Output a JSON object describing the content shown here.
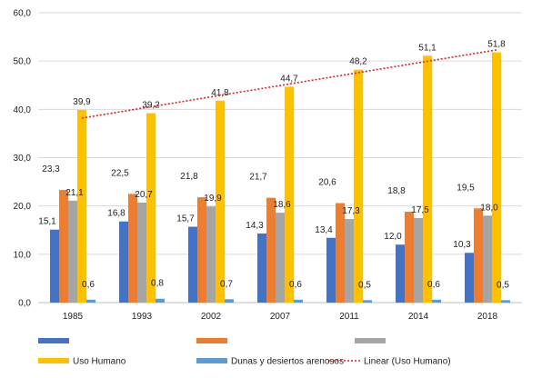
{
  "chart_data": {
    "type": "bar",
    "categories": [
      "1985",
      "1993",
      "2002",
      "2007",
      "2011",
      "2014",
      "2018"
    ],
    "series": [
      {
        "name": "",
        "color": "#4472C4",
        "values": [
          15.1,
          16.8,
          15.7,
          14.3,
          13.4,
          12.0,
          10.3
        ],
        "labels": [
          "15,1",
          "16,8",
          "15,7",
          "14,3",
          "13,4",
          "12,0",
          "10,3"
        ]
      },
      {
        "name": "",
        "color": "#ED7D31",
        "values": [
          23.3,
          22.5,
          21.8,
          21.7,
          20.6,
          18.8,
          19.5
        ],
        "labels": [
          "23,3",
          "22,5",
          "21,8",
          "21,7",
          "20,6",
          "18,8",
          "19,5"
        ]
      },
      {
        "name": "",
        "color": "#A5A5A5",
        "values": [
          21.1,
          20.7,
          19.9,
          18.6,
          17.3,
          17.5,
          18.0
        ],
        "labels": [
          "21,1",
          "20,7",
          "19,9",
          "18,6",
          "17,3",
          "17,5",
          "18,0"
        ]
      },
      {
        "name": "Uso Humano",
        "color": "#FFC000",
        "values": [
          39.9,
          39.2,
          41.8,
          44.7,
          48.2,
          51.1,
          51.8
        ],
        "labels": [
          "39,9",
          "39,2",
          "41,8",
          "44,7",
          "48,2",
          "51,1",
          "51,8"
        ]
      },
      {
        "name": "Dunas y desiertos arenosos",
        "color": "#5B9BD5",
        "values": [
          0.6,
          0.8,
          0.7,
          0.6,
          0.5,
          0.6,
          0.5
        ],
        "labels": [
          "0,6",
          "0,8",
          "0,7",
          "0,6",
          "0,5",
          "0,6",
          "0,5"
        ]
      }
    ],
    "trendline": {
      "name": "Linear (Uso Humano)",
      "series": "Uso Humano",
      "color": "#E02020",
      "style": "dotted"
    },
    "yticks": [
      "0,0",
      "10,0",
      "20,0",
      "30,0",
      "40,0",
      "50,0",
      "60,0"
    ],
    "ylim": [
      0,
      60
    ],
    "grid": true,
    "legend_position": "bottom",
    "title": "",
    "xlabel": "",
    "ylabel": ""
  }
}
